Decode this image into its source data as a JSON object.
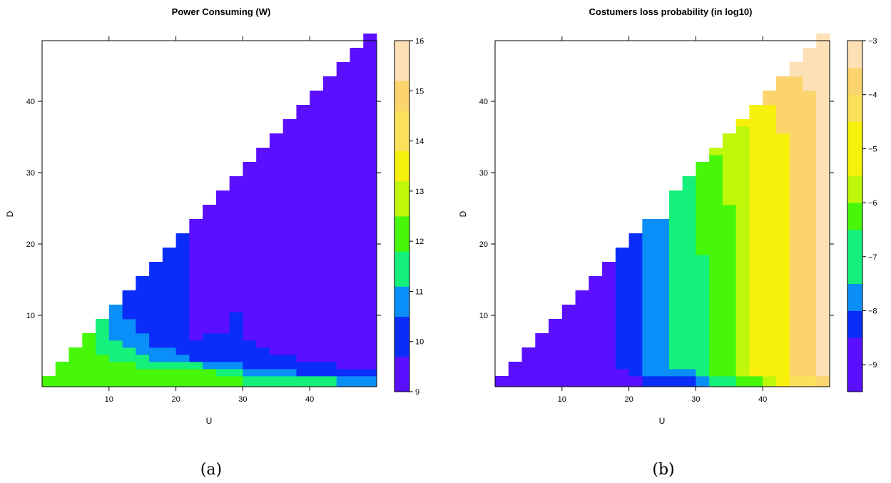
{
  "captions": {
    "a": "(a)",
    "b": "(b)"
  },
  "chart_data": [
    {
      "type": "heatmap",
      "title": "Power Consuming (W)",
      "xlabel": "U",
      "ylabel": "D",
      "x_ticks": [
        10,
        20,
        30,
        40
      ],
      "y_ticks": [
        10,
        20,
        30,
        40
      ],
      "xlim": [
        0,
        50
      ],
      "ylim": [
        0,
        48.5
      ],
      "colorbar": {
        "breaks": [
          9,
          9.7,
          10.5,
          11.1,
          11.8,
          12.5,
          13.2,
          13.8,
          14.6,
          15.2,
          16
        ],
        "tick_values": [
          9,
          10,
          11,
          12,
          13,
          14,
          15,
          16
        ],
        "tick_labels": [
          "9",
          "10",
          "11",
          "12",
          "13",
          "14",
          "15",
          "16"
        ],
        "colors": [
          "#5a0fff",
          "#0a2ef7",
          "#0a8ef7",
          "#14f07a",
          "#46f70a",
          "#bff70a",
          "#f7f00a",
          "#fae15c",
          "#fbd46e",
          "#fde0b5"
        ]
      },
      "cell_width": 2,
      "cell_height": 2,
      "columns": [
        {
          "u": 1,
          "runs": [
            [
              0,
              1,
              4
            ]
          ]
        },
        {
          "u": 3,
          "runs": [
            [
              0,
              3,
              4
            ]
          ]
        },
        {
          "u": 5,
          "runs": [
            [
              0,
              5,
              4
            ]
          ]
        },
        {
          "u": 7,
          "runs": [
            [
              0,
              7,
              4
            ]
          ]
        },
        {
          "u": 9,
          "runs": [
            [
              0,
              4,
              4
            ],
            [
              4,
              9,
              3
            ]
          ]
        },
        {
          "u": 11,
          "runs": [
            [
              0,
              3,
              4
            ],
            [
              3,
              6,
              3
            ],
            [
              6,
              11,
              2
            ]
          ]
        },
        {
          "u": 13,
          "runs": [
            [
              0,
              3,
              4
            ],
            [
              3,
              5,
              3
            ],
            [
              5,
              9,
              2
            ],
            [
              9,
              13,
              1
            ]
          ]
        },
        {
          "u": 15,
          "runs": [
            [
              0,
              2,
              4
            ],
            [
              2,
              4,
              3
            ],
            [
              4,
              7,
              2
            ],
            [
              7,
              15,
              1
            ]
          ]
        },
        {
          "u": 17,
          "runs": [
            [
              0,
              2,
              4
            ],
            [
              2,
              3,
              3
            ],
            [
              3,
              5,
              2
            ],
            [
              5,
              17,
              1
            ]
          ]
        },
        {
          "u": 19,
          "runs": [
            [
              0,
              2,
              4
            ],
            [
              2,
              3,
              3
            ],
            [
              3,
              5,
              2
            ],
            [
              5,
              19,
              1
            ]
          ]
        },
        {
          "u": 21,
          "runs": [
            [
              0,
              2,
              4
            ],
            [
              2,
              3,
              3
            ],
            [
              3,
              4,
              2
            ],
            [
              4,
              21,
              1
            ]
          ]
        },
        {
          "u": 23,
          "runs": [
            [
              0,
              2,
              4
            ],
            [
              2,
              3,
              3
            ],
            [
              3,
              6,
              1
            ],
            [
              6,
              23,
              0
            ]
          ]
        },
        {
          "u": 25,
          "runs": [
            [
              0,
              2,
              4
            ],
            [
              2,
              3,
              2
            ],
            [
              3,
              7,
              1
            ],
            [
              7,
              25,
              0
            ]
          ]
        },
        {
          "u": 27,
          "runs": [
            [
              0,
              1,
              4
            ],
            [
              1,
              2,
              3
            ],
            [
              2,
              3,
              2
            ],
            [
              3,
              7,
              1
            ],
            [
              7,
              27,
              0
            ]
          ]
        },
        {
          "u": 29,
          "runs": [
            [
              0,
              1,
              4
            ],
            [
              1,
              2,
              3
            ],
            [
              2,
              3,
              2
            ],
            [
              3,
              10,
              1
            ],
            [
              10,
              29,
              0
            ]
          ]
        },
        {
          "u": 31,
          "runs": [
            [
              0,
              1,
              3
            ],
            [
              1,
              2,
              2
            ],
            [
              2,
              6,
              1
            ],
            [
              6,
              31,
              0
            ]
          ]
        },
        {
          "u": 33,
          "runs": [
            [
              0,
              1,
              3
            ],
            [
              1,
              2,
              2
            ],
            [
              2,
              5,
              1
            ],
            [
              5,
              33,
              0
            ]
          ]
        },
        {
          "u": 35,
          "runs": [
            [
              0,
              1,
              3
            ],
            [
              1,
              2,
              2
            ],
            [
              2,
              4,
              1
            ],
            [
              4,
              35,
              0
            ]
          ]
        },
        {
          "u": 37,
          "runs": [
            [
              0,
              1,
              3
            ],
            [
              1,
              2,
              2
            ],
            [
              2,
              4,
              1
            ],
            [
              4,
              37,
              0
            ]
          ]
        },
        {
          "u": 39,
          "runs": [
            [
              0,
              1,
              3
            ],
            [
              1,
              3,
              1
            ],
            [
              3,
              39,
              0
            ]
          ]
        },
        {
          "u": 41,
          "runs": [
            [
              0,
              1,
              3
            ],
            [
              1,
              3,
              1
            ],
            [
              3,
              41,
              0
            ]
          ]
        },
        {
          "u": 43,
          "runs": [
            [
              0,
              1,
              3
            ],
            [
              1,
              3,
              1
            ],
            [
              3,
              43,
              0
            ]
          ]
        },
        {
          "u": 45,
          "runs": [
            [
              0,
              1,
              2
            ],
            [
              1,
              2,
              1
            ],
            [
              2,
              45,
              0
            ]
          ]
        },
        {
          "u": 47,
          "runs": [
            [
              0,
              1,
              2
            ],
            [
              1,
              2,
              1
            ],
            [
              2,
              47,
              0
            ]
          ]
        },
        {
          "u": 49,
          "runs": [
            [
              0,
              1,
              2
            ],
            [
              1,
              2,
              1
            ],
            [
              2,
              49,
              0
            ]
          ]
        }
      ]
    },
    {
      "type": "heatmap",
      "title": "Costumers loss probability (in log10)",
      "xlabel": "U",
      "ylabel": "D",
      "x_ticks": [
        10,
        20,
        30,
        40
      ],
      "y_ticks": [
        10,
        20,
        30,
        40
      ],
      "xlim": [
        0,
        50
      ],
      "ylim": [
        0,
        48.5
      ],
      "colorbar": {
        "breaks": [
          -9.5,
          -9,
          -8.5,
          -8,
          -7.5,
          -7,
          -6.5,
          -6,
          -5.5,
          -5,
          -4.5,
          -4,
          -3.5,
          -3
        ],
        "tick_values": [
          -9,
          -8,
          -7,
          -6,
          -5,
          -4,
          -3
        ],
        "tick_labels": [
          "−9",
          "−8",
          "−7",
          "−6",
          "−5",
          "−4",
          "−3"
        ],
        "colors": [
          "#5a0fff",
          "#0a2ef7",
          "#0a8ef7",
          "#14f07a",
          "#46f70a",
          "#bff70a",
          "#f7f00a",
          "#fae15c",
          "#fbd46e",
          "#fde0b5"
        ],
        "color_breaks_note": ""
      },
      "cell_width": 2,
      "cell_height": 2,
      "columns": [
        {
          "u": 1,
          "runs": [
            [
              0,
              1,
              0
            ]
          ]
        },
        {
          "u": 3,
          "runs": [
            [
              0,
              3,
              0
            ]
          ]
        },
        {
          "u": 5,
          "runs": [
            [
              0,
              5,
              0
            ]
          ]
        },
        {
          "u": 7,
          "runs": [
            [
              0,
              7,
              0
            ]
          ]
        },
        {
          "u": 9,
          "runs": [
            [
              0,
              9,
              0
            ]
          ]
        },
        {
          "u": 11,
          "runs": [
            [
              0,
              11,
              0
            ]
          ]
        },
        {
          "u": 13,
          "runs": [
            [
              0,
              13,
              0
            ]
          ]
        },
        {
          "u": 15,
          "runs": [
            [
              0,
              15,
              0
            ]
          ]
        },
        {
          "u": 17,
          "runs": [
            [
              0,
              17,
              0
            ]
          ]
        },
        {
          "u": 19,
          "runs": [
            [
              0,
              2,
              0
            ],
            [
              2,
              19,
              1
            ]
          ]
        },
        {
          "u": 21,
          "runs": [
            [
              0,
              1,
              0
            ],
            [
              1,
              21,
              1
            ]
          ]
        },
        {
          "u": 23,
          "runs": [
            [
              0,
              1,
              1
            ],
            [
              1,
              23,
              2
            ]
          ]
        },
        {
          "u": 25,
          "runs": [
            [
              0,
              1,
              1
            ],
            [
              1,
              23,
              2
            ]
          ]
        },
        {
          "u": 27,
          "runs": [
            [
              0,
              1,
              1
            ],
            [
              1,
              2,
              2
            ],
            [
              2,
              27,
              3
            ]
          ]
        },
        {
          "u": 29,
          "runs": [
            [
              0,
              1,
              1
            ],
            [
              1,
              2,
              2
            ],
            [
              2,
              29,
              3
            ]
          ]
        },
        {
          "u": 31,
          "runs": [
            [
              0,
              1,
              2
            ],
            [
              1,
              18,
              3
            ],
            [
              18,
              31,
              4
            ]
          ]
        },
        {
          "u": 33,
          "runs": [
            [
              0,
              1,
              3
            ],
            [
              1,
              32,
              4
            ],
            [
              32,
              33,
              5
            ]
          ]
        },
        {
          "u": 35,
          "runs": [
            [
              0,
              1,
              3
            ],
            [
              1,
              25,
              4
            ],
            [
              25,
              35,
              5
            ]
          ]
        },
        {
          "u": 37,
          "runs": [
            [
              0,
              1,
              4
            ],
            [
              1,
              36,
              5
            ],
            [
              36,
              37,
              6
            ]
          ]
        },
        {
          "u": 39,
          "runs": [
            [
              0,
              1,
              4
            ],
            [
              1,
              39,
              6
            ]
          ]
        },
        {
          "u": 41,
          "runs": [
            [
              0,
              1,
              5
            ],
            [
              1,
              39,
              6
            ],
            [
              39,
              41,
              8
            ]
          ]
        },
        {
          "u": 43,
          "runs": [
            [
              0,
              1,
              6
            ],
            [
              1,
              35,
              6
            ],
            [
              35,
              43,
              8
            ]
          ]
        },
        {
          "u": 45,
          "runs": [
            [
              0,
              1,
              7
            ],
            [
              1,
              43,
              8
            ],
            [
              43,
              45,
              9
            ]
          ]
        },
        {
          "u": 47,
          "runs": [
            [
              0,
              1,
              7
            ],
            [
              1,
              41,
              8
            ],
            [
              41,
              47,
              9
            ]
          ]
        },
        {
          "u": 49,
          "runs": [
            [
              0,
              1,
              8
            ],
            [
              1,
              49,
              9
            ]
          ]
        }
      ]
    }
  ]
}
